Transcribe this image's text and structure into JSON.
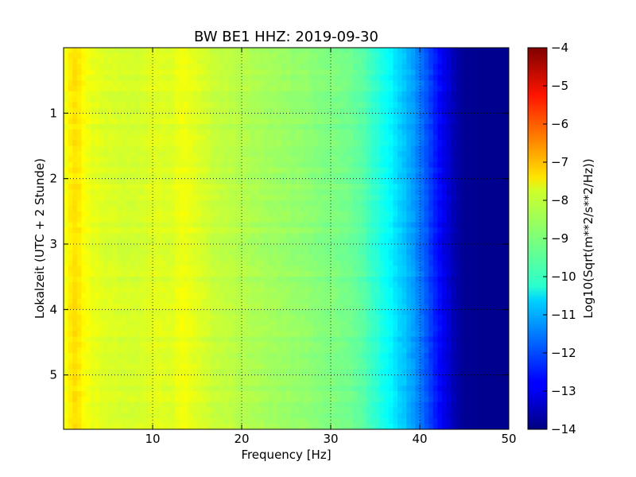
{
  "chart_data": {
    "type": "heatmap",
    "title": "BW BE1 HHZ: 2019-09-30",
    "xlabel": "Frequency [Hz]",
    "ylabel": "Lokalzeit (UTC + 2 Stunde)",
    "xlim": [
      0,
      50
    ],
    "ylim": [
      5.83,
      0
    ],
    "x_ticks": [
      10,
      20,
      30,
      40,
      50
    ],
    "y_ticks": [
      1,
      2,
      3,
      4,
      5
    ],
    "grid": true,
    "colormap": "jet",
    "colorbar": {
      "label": "Log10(Sqrt(m**2/s**2/Hz))",
      "range": [
        -14,
        -4
      ],
      "ticks": [
        -4,
        -5,
        -6,
        -7,
        -8,
        -9,
        -10,
        -11,
        -12,
        -13,
        -14
      ]
    },
    "spectrum_profile": {
      "frequency_hz": [
        0,
        0.6,
        1,
        1.5,
        3,
        5,
        7,
        9,
        10,
        12,
        13.5,
        15,
        17,
        20,
        23,
        26,
        29,
        31,
        33,
        34,
        35,
        36,
        37,
        38,
        39,
        40,
        41,
        42,
        43,
        44,
        45,
        47,
        50
      ],
      "log10_amplitude": [
        -7.9,
        -7.7,
        -7.4,
        -7.5,
        -7.95,
        -8.1,
        -8.15,
        -8.15,
        -8.05,
        -8.1,
        -7.85,
        -8.1,
        -8.3,
        -8.5,
        -8.65,
        -8.8,
        -8.95,
        -9.05,
        -9.25,
        -9.5,
        -9.8,
        -10.1,
        -10.4,
        -10.75,
        -11.1,
        -11.55,
        -12.05,
        -12.6,
        -13.1,
        -13.55,
        -13.8,
        -13.85,
        -13.85
      ]
    }
  }
}
